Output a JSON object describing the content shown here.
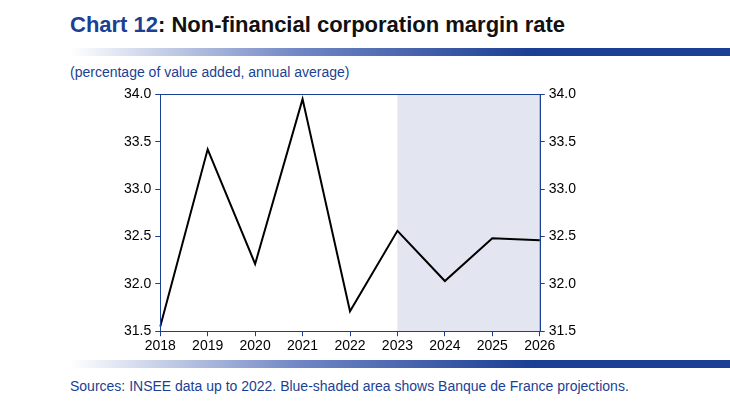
{
  "chart_data": {
    "type": "line",
    "title": "Chart 12: Non-financial corporation margin rate",
    "subtitle": "(percentage of value added, annual average)",
    "source": "Sources: INSEE data up to 2022. Blue-shaded area shows Banque de France projections.",
    "categories": [
      "2018",
      "2019",
      "2020",
      "2021",
      "2022",
      "2023",
      "2024",
      "2025",
      "2026"
    ],
    "values": [
      31.55,
      33.42,
      32.21,
      33.95,
      31.71,
      32.56,
      32.03,
      32.48,
      32.46
    ],
    "color": "#000000",
    "ylim": [
      31.5,
      34
    ],
    "yticks": [
      31.5,
      {
        "value": 32,
        "label": "32.0"
      },
      32.5,
      {
        "value": 33,
        "label": "33.0"
      },
      33.5,
      {
        "value": 34,
        "label": "34.0"
      }
    ],
    "y2lim": [
      31.5,
      34
    ],
    "y2ticks": [
      31.5,
      {
        "value": 32,
        "label": "32.0"
      },
      32.5,
      {
        "value": 33,
        "label": "33.0"
      },
      33.5,
      {
        "value": 34,
        "label": "34.0"
      }
    ],
    "shaded_categories": [
      "2023",
      "2026"
    ],
    "grid": false
  }
}
